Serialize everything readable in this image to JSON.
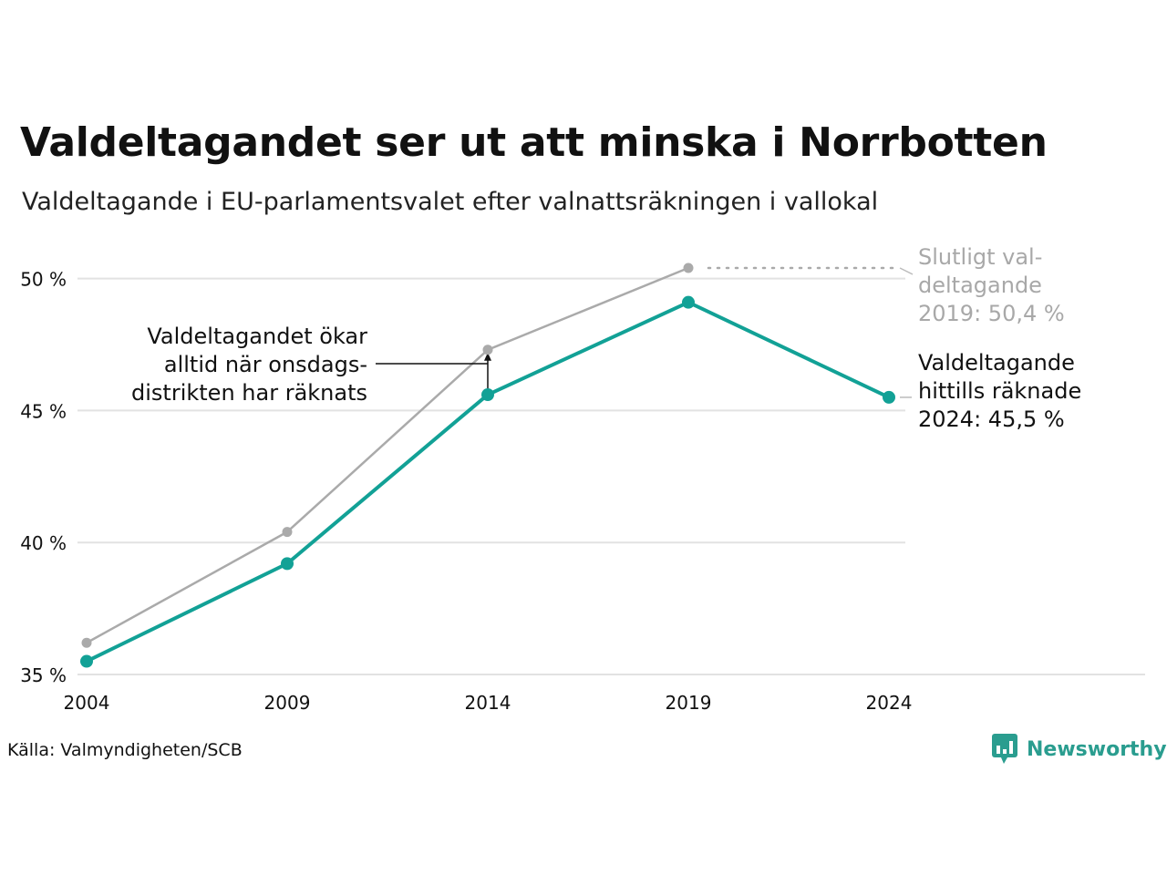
{
  "title": "Valdeltagandet ser ut att minska i Norrbotten",
  "subtitle": "Valdeltagande i EU-parlamentsvalet efter valnattsräkningen i vallokal",
  "source": "Källa: Valmyndigheten/SCB",
  "brand": "Newsworthy",
  "colors": {
    "final": "#aaaaaa",
    "counted": "#12a196",
    "grid": "#e2e2e2",
    "text": "#111111",
    "brand": "#2a9d8f"
  },
  "chart_data": {
    "type": "line",
    "x": [
      2004,
      2009,
      2014,
      2019,
      2024
    ],
    "x_tick_labels": [
      "2004",
      "2009",
      "2014",
      "2019",
      "2024"
    ],
    "ylim": [
      35,
      50.4
    ],
    "y_ticks": [
      35,
      40,
      45,
      50
    ],
    "y_tick_labels": [
      "35 %",
      "40 %",
      "45 %",
      "50 %"
    ],
    "grid": true,
    "series": [
      {
        "key": "final",
        "values": [
          36.2,
          40.4,
          47.3,
          50.4,
          null
        ]
      },
      {
        "key": "counted",
        "values": [
          35.5,
          39.2,
          45.6,
          49.1,
          45.5
        ]
      }
    ],
    "annotations": {
      "final_label": [
        "Slutligt val-",
        "deltagande",
        "2019: 50,4 %"
      ],
      "counted_label": [
        "Valdeltagande",
        "hittills räknade",
        "2024: 45,5 %"
      ],
      "note": [
        "Valdeltagandet ökar",
        "alltid när onsdags-",
        "distrikten har räknats"
      ]
    }
  }
}
